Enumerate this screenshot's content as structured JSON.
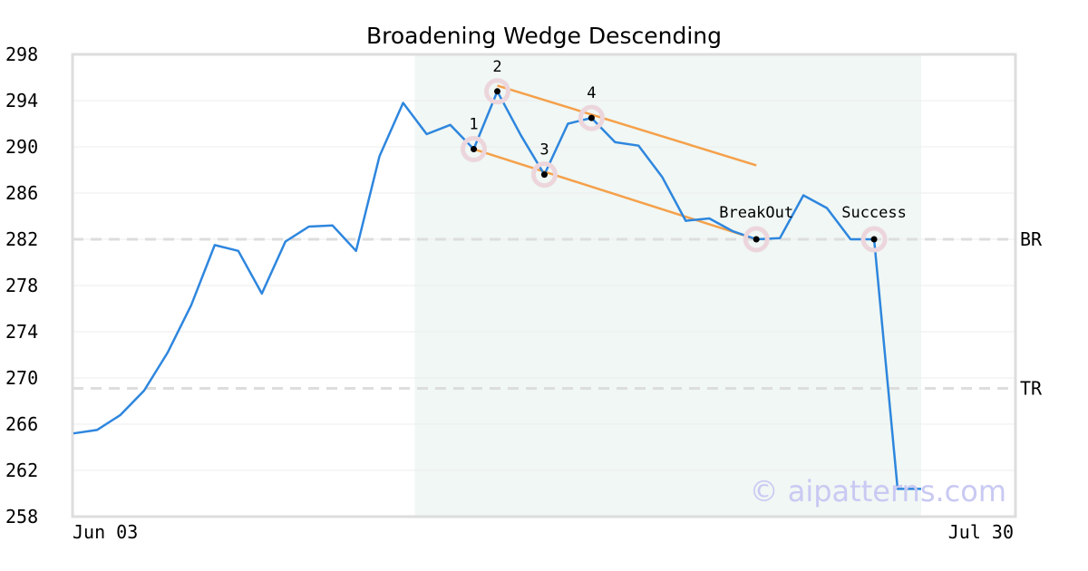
{
  "chart_data": {
    "type": "line",
    "title": "Broadening Wedge Descending",
    "xlabel": "",
    "ylabel": "",
    "ylim": [
      258,
      298
    ],
    "y_ticks": [
      298,
      294,
      290,
      286,
      282,
      278,
      274,
      270,
      266,
      262,
      258
    ],
    "x_tick_labels": [
      "Jun 03",
      "Jul 30"
    ],
    "grid": "horizontal",
    "series": [
      {
        "values": [
          265.2,
          265.5,
          266.8,
          268.9,
          272.2,
          276.3,
          281.5,
          281.0,
          277.3,
          281.8,
          283.1,
          283.2,
          281.0,
          289.2,
          293.8,
          291.1,
          291.9,
          289.8,
          294.8,
          291.0,
          287.6,
          292.0,
          292.5,
          290.4,
          290.1,
          287.4,
          283.6,
          283.8,
          282.7,
          282.0,
          282.1,
          285.8,
          284.7,
          282.0,
          282.0,
          260.4,
          260.4
        ]
      }
    ],
    "highlight_region": {
      "start_index": 15,
      "end_index": 36
    },
    "levels": [
      {
        "label": "BR",
        "value": 282.0
      },
      {
        "label": "TR",
        "value": 269.1
      }
    ],
    "trendlines": [
      {
        "from": [
          18,
          295.3
        ],
        "to": [
          29,
          288.4
        ]
      },
      {
        "from": [
          17,
          289.8
        ],
        "to": [
          29,
          282.0
        ]
      }
    ],
    "markers": [
      {
        "label": "1",
        "index": 17,
        "value": 289.8,
        "label_pos": "above"
      },
      {
        "label": "2",
        "index": 18,
        "value": 294.8,
        "label_pos": "above"
      },
      {
        "label": "3",
        "index": 20,
        "value": 287.6,
        "label_pos": "above"
      },
      {
        "label": "4",
        "index": 22,
        "value": 292.5,
        "label_pos": "above"
      },
      {
        "label": "BreakOut",
        "index": 29,
        "value": 282.0,
        "label_pos": "above"
      },
      {
        "label": "Success",
        "index": 34,
        "value": 282.0,
        "label_pos": "above"
      }
    ],
    "colors": {
      "line": "#2e86de",
      "trendline": "#f5a04a",
      "region": "#f0f7f4",
      "level": "#dddddd",
      "marker_halo": "#ecd6dc",
      "marker_dot": "#000000",
      "frame": "#dddddd",
      "grid": "#ececec"
    }
  },
  "watermark": "© aipatterns.com"
}
